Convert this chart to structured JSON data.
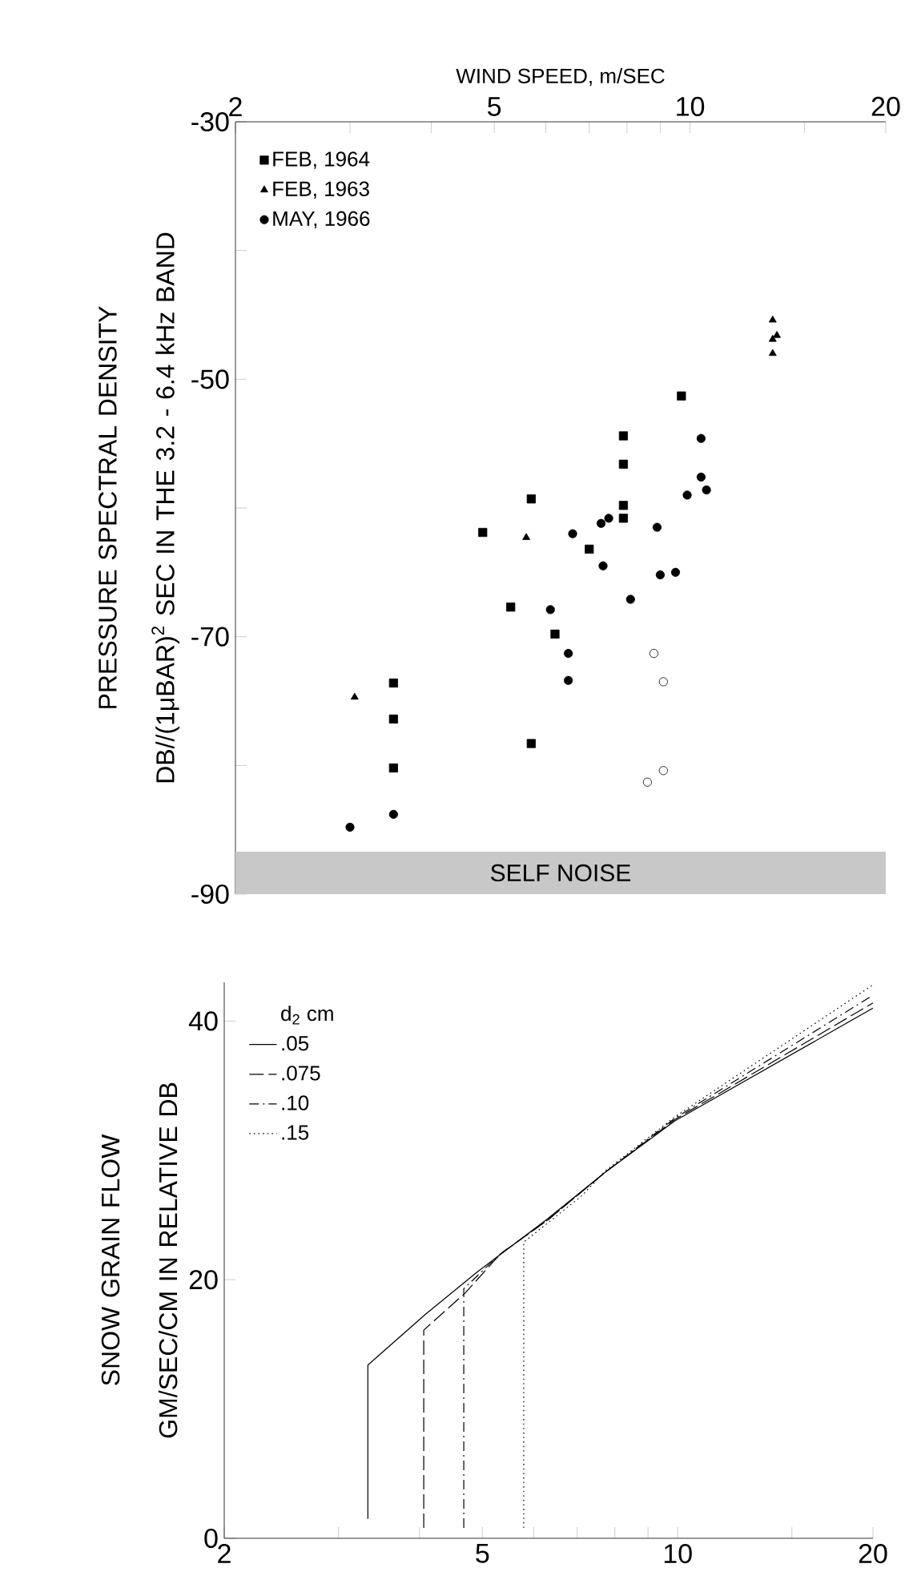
{
  "chart_data": [
    {
      "type": "scatter",
      "xlabel": "WIND SPEED, m/SEC",
      "ylabel": "PRESSURE SPECTRAL DENSITY DB//(1μBAR)$^{2}$ SEC IN THE 3.2 - 6.4 kHz BAND",
      "log": "x",
      "xlim": [
        2,
        20
      ],
      "ylim": [
        -90,
        -30
      ],
      "xticks": [
        2,
        {
          "value": 3,
          "label": null
        },
        {
          "value": 4,
          "label": null
        },
        5,
        {
          "value": 6,
          "label": null
        },
        {
          "value": 7,
          "label": null
        },
        {
          "value": 8,
          "label": null
        },
        {
          "value": 9,
          "label": null
        },
        10,
        {
          "value": 15,
          "label": null
        },
        20
      ],
      "yticks": [
        -90,
        {
          "value": -80,
          "label": null
        },
        -70,
        {
          "value": -60,
          "label": null
        },
        -50,
        {
          "value": -40,
          "label": null
        },
        -30
      ],
      "legend": "top left",
      "bands": [
        {
          "axis": "y",
          "from": -90,
          "to": -86.7,
          "label": "SELF NOISE",
          "color": "#c8c8c8"
        }
      ],
      "series": [
        {
          "name": "FEB, 1964",
          "color": "#000000",
          "marker": "square",
          "x": [
            9.7,
            7.9,
            7.9,
            5.7,
            7.9,
            7.9,
            4.8,
            7.0,
            5.3,
            6.2,
            3.5,
            3.5,
            3.5,
            5.7
          ],
          "values": [
            -51.3,
            -54.4,
            -56.6,
            -59.3,
            -59.8,
            -60.8,
            -61.9,
            -63.2,
            -67.7,
            -69.8,
            -73.6,
            -76.4,
            -80.2,
            -78.3
          ]
        },
        {
          "name": "FEB, 1963",
          "color": "#000000",
          "marker": "triangle",
          "x": [
            3.05,
            5.6,
            13.4,
            13.6,
            13.4,
            13.4
          ],
          "values": [
            -74.7,
            -62.3,
            -45.4,
            -46.6,
            -46.9,
            -48.0
          ]
        },
        {
          "name": "MAY, 1966",
          "color": "#000000",
          "marker": "circle",
          "x": [
            3.0,
            3.5,
            10.4,
            10.4,
            10.6,
            9.9,
            7.5,
            7.3,
            6.6,
            8.9,
            7.35,
            9.0,
            9.5,
            8.1,
            6.1,
            6.5,
            6.5
          ],
          "values": [
            -84.8,
            -83.8,
            -54.6,
            -57.6,
            -58.6,
            -59.0,
            -60.8,
            -61.2,
            -62.0,
            -61.5,
            -64.5,
            -65.2,
            -65.0,
            -67.1,
            -67.9,
            -71.3,
            -73.4
          ]
        },
        {
          "color": "#ffffff",
          "marker": "circle",
          "x": [
            8.8,
            9.1,
            9.1,
            8.6
          ],
          "values": [
            -71.3,
            -73.5,
            -80.4,
            -81.3
          ]
        }
      ]
    },
    {
      "type": "line",
      "ylabel": "SNOW GRAIN FLOW GM/SEC/CM IN RELATIVE DB",
      "log": "x",
      "xlim": [
        2,
        20
      ],
      "ylim": [
        0,
        43
      ],
      "xticks": [
        2,
        {
          "value": 3,
          "label": null
        },
        {
          "value": 4,
          "label": null
        },
        5,
        {
          "value": 6,
          "label": null
        },
        {
          "value": 7,
          "label": null
        },
        {
          "value": 8,
          "label": null
        },
        {
          "value": 9,
          "label": null
        },
        10,
        {
          "value": 15,
          "label": null
        },
        20
      ],
      "yticks": [
        0,
        20,
        40
      ],
      "legend": "top left",
      "legend_title": "d$_{2}$ cm",
      "series": [
        {
          "name": ".05",
          "color": "#000000",
          "line_style": "solid",
          "x": [
            3.33,
            3.33,
            4.08,
            4.91,
            6.3,
            7.73,
            9.91,
            20
          ],
          "values": [
            1.5,
            13.4,
            17.3,
            20.6,
            24.7,
            28.3,
            32.3,
            41.0
          ]
        },
        {
          "name": ".075",
          "color": "#000000",
          "line_style": "dashed",
          "x": [
            4.06,
            4.06,
            4.71,
            5.33,
            6.3,
            7.73,
            9.91,
            20
          ],
          "values": [
            0.8,
            16.1,
            19.0,
            22.0,
            24.6,
            28.3,
            32.4,
            41.4
          ]
        },
        {
          "name": ".10",
          "color": "#000000",
          "line_style": "dashdot",
          "x": [
            4.68,
            4.68,
            5.33,
            6.3,
            7.73,
            9.91,
            20
          ],
          "values": [
            0.8,
            19.3,
            22.0,
            24.6,
            28.3,
            32.5,
            42.0
          ]
        },
        {
          "name": ".15",
          "color": "#000000",
          "line_style": "dotted",
          "x": [
            5.79,
            5.79,
            7.12,
            7.73,
            9.91,
            20
          ],
          "values": [
            0.8,
            22.9,
            26.5,
            28.4,
            32.6,
            42.8
          ]
        }
      ]
    }
  ]
}
